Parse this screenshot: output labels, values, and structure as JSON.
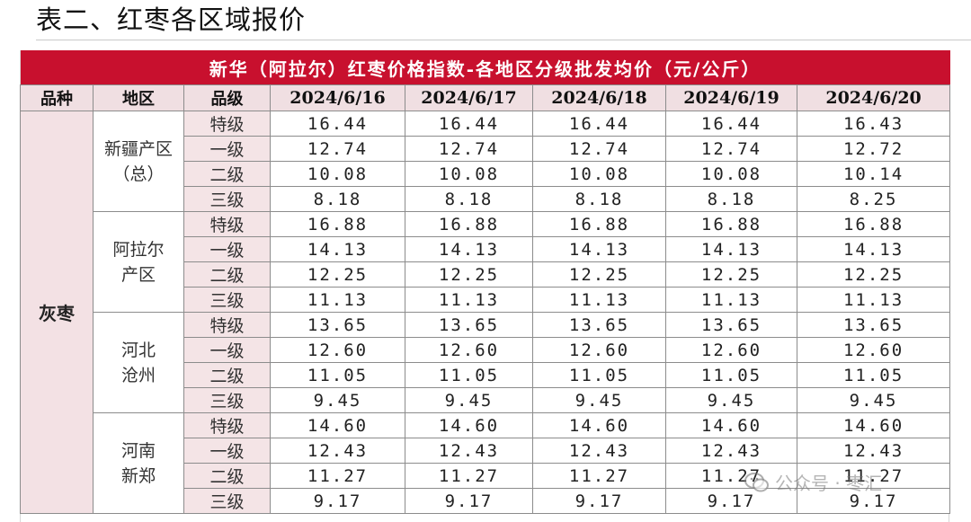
{
  "page_title": "表二、红枣各区域报价",
  "table": {
    "banner": "新华（阿拉尔）红枣价格指数-各地区分级批发均价（元/公斤）",
    "headers": {
      "variety": "品种",
      "region": "地区",
      "grade": "品级",
      "dates": [
        "2024/6/16",
        "2024/6/17",
        "2024/6/18",
        "2024/6/19",
        "2024/6/20"
      ]
    },
    "variety": "灰枣",
    "grades": [
      "特级",
      "一级",
      "二级",
      "三级"
    ],
    "regions": [
      {
        "name": "新疆产区（总）",
        "rows": [
          [
            "16.44",
            "16.44",
            "16.44",
            "16.44",
            "16.43"
          ],
          [
            "12.74",
            "12.74",
            "12.74",
            "12.74",
            "12.72"
          ],
          [
            "10.08",
            "10.08",
            "10.08",
            "10.08",
            "10.14"
          ],
          [
            "8.18",
            "8.18",
            "8.18",
            "8.18",
            "8.25"
          ]
        ]
      },
      {
        "name": "阿拉尔产区",
        "rows": [
          [
            "16.88",
            "16.88",
            "16.88",
            "16.88",
            "16.88"
          ],
          [
            "14.13",
            "14.13",
            "14.13",
            "14.13",
            "14.13"
          ],
          [
            "12.25",
            "12.25",
            "12.25",
            "12.25",
            "12.25"
          ],
          [
            "11.13",
            "11.13",
            "11.13",
            "11.13",
            "11.13"
          ]
        ]
      },
      {
        "name": "河北沧州",
        "rows": [
          [
            "13.65",
            "13.65",
            "13.65",
            "13.65",
            "13.65"
          ],
          [
            "12.60",
            "12.60",
            "12.60",
            "12.60",
            "12.60"
          ],
          [
            "11.05",
            "11.05",
            "11.05",
            "11.05",
            "11.05"
          ],
          [
            "9.45",
            "9.45",
            "9.45",
            "9.45",
            "9.45"
          ]
        ]
      },
      {
        "name": "河南新郑",
        "rows": [
          [
            "14.60",
            "14.60",
            "14.60",
            "14.60",
            "14.60"
          ],
          [
            "12.43",
            "12.43",
            "12.43",
            "12.43",
            "12.43"
          ],
          [
            "11.27",
            "11.27",
            "11.27",
            "11.27",
            "11.27"
          ],
          [
            "9.17",
            "9.17",
            "9.17",
            "9.17",
            "9.17"
          ]
        ]
      }
    ]
  },
  "watermark": {
    "icon": "wechat-icon",
    "text": "公众号 · 枣汇"
  }
}
